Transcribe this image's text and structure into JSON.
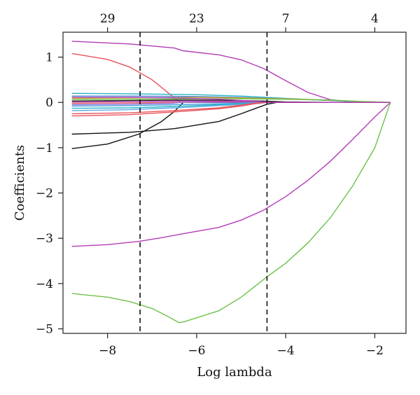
{
  "chart_data": {
    "type": "line",
    "xlabel": "Log lambda",
    "ylabel": "Coefficients",
    "xlim": [
      -9.0,
      -1.3
    ],
    "ylim": [
      -5.1,
      1.55
    ],
    "xticks": [
      -8,
      -6,
      -4,
      -2
    ],
    "yticks": [
      -5,
      -4,
      -3,
      -2,
      -1,
      0,
      1
    ],
    "xtick_labels": [
      "−8",
      "−6",
      "−4",
      "−2"
    ],
    "ytick_labels": [
      "−5",
      "−4",
      "−3",
      "−2",
      "−1",
      "0",
      "1"
    ],
    "top_axis": {
      "positions": [
        -8.0,
        -6.0,
        -4.0,
        -2.0
      ],
      "labels": [
        "29",
        "23",
        "7",
        "4"
      ]
    },
    "vlines": [
      -7.27,
      -4.42
    ],
    "grid": false,
    "series": [
      {
        "color": "#b33cb8",
        "x": [
          -8.8,
          -7.5,
          -6.5,
          -6.3,
          -5.5,
          -5.0,
          -4.5,
          -4.0,
          -3.5,
          -3.0,
          -2.5,
          -2.2,
          -1.65
        ],
        "y": [
          1.35,
          1.29,
          1.2,
          1.14,
          1.05,
          0.94,
          0.75,
          0.48,
          0.22,
          0.06,
          0.01,
          0.0,
          0.0
        ]
      },
      {
        "color": "#e8535a",
        "x": [
          -8.8,
          -8.0,
          -7.5,
          -7.0,
          -6.7,
          -6.5,
          -6.35,
          -5.0,
          -3.0,
          -1.65
        ],
        "y": [
          1.08,
          0.95,
          0.78,
          0.5,
          0.26,
          0.1,
          0.0,
          0.0,
          0.0,
          0.0
        ]
      },
      {
        "color": "#b33cb8",
        "x": [
          -8.8,
          -8.0,
          -7.3,
          -6.8,
          -6.3,
          -5.5,
          -5.0,
          -4.5,
          -4.0,
          -3.5,
          -3.0,
          -2.5,
          -2.0,
          -1.65
        ],
        "y": [
          -3.18,
          -3.14,
          -3.07,
          -2.99,
          -2.9,
          -2.76,
          -2.6,
          -2.38,
          -2.08,
          -1.72,
          -1.3,
          -0.82,
          -0.32,
          0.0
        ]
      },
      {
        "color": "#6cc24a",
        "x": [
          -8.8,
          -8.0,
          -7.5,
          -7.0,
          -6.6,
          -6.4,
          -6.3,
          -5.5,
          -5.0,
          -4.42,
          -4.0,
          -3.5,
          -3.0,
          -2.5,
          -2.0,
          -1.65
        ],
        "y": [
          -4.22,
          -4.3,
          -4.4,
          -4.55,
          -4.75,
          -4.86,
          -4.85,
          -4.6,
          -4.3,
          -3.85,
          -3.55,
          -3.1,
          -2.55,
          -1.85,
          -1.0,
          0.0
        ]
      },
      {
        "color": "#111111",
        "x": [
          -8.8,
          -8.0,
          -7.3,
          -6.8,
          -6.5,
          -6.3,
          -5.0,
          -3.0,
          -1.65
        ],
        "y": [
          -1.02,
          -0.92,
          -0.7,
          -0.43,
          -0.2,
          0.0,
          0.0,
          0.0,
          0.0
        ]
      },
      {
        "color": "#111111",
        "x": [
          -8.8,
          -7.5,
          -6.5,
          -5.5,
          -5.0,
          -4.7,
          -4.42,
          -4.2,
          -3.0,
          -1.65
        ],
        "y": [
          -0.7,
          -0.66,
          -0.58,
          -0.42,
          -0.25,
          -0.14,
          -0.04,
          0.0,
          0.0,
          0.0
        ]
      },
      {
        "color": "#2bb3c6",
        "x": [
          -8.8,
          -7.5,
          -6.0,
          -5.0,
          -4.0,
          -3.0,
          -2.3,
          -1.65
        ],
        "y": [
          0.2,
          0.19,
          0.17,
          0.14,
          0.09,
          0.04,
          0.01,
          0.0
        ]
      },
      {
        "color": "#4d86d6",
        "x": [
          -8.8,
          -7.5,
          -6.0,
          -5.0,
          -4.0,
          -3.0,
          -2.3,
          -1.65
        ],
        "y": [
          0.14,
          0.14,
          0.13,
          0.11,
          0.08,
          0.04,
          0.01,
          0.0
        ]
      },
      {
        "color": "#c9a227",
        "x": [
          -8.8,
          -7.5,
          -6.0,
          -5.0,
          -4.0,
          -3.0,
          -2.3,
          -1.65
        ],
        "y": [
          0.09,
          0.1,
          0.11,
          0.1,
          0.08,
          0.05,
          0.02,
          0.0
        ]
      },
      {
        "color": "#6cc24a",
        "x": [
          -8.8,
          -7.5,
          -6.0,
          -5.0,
          -4.0,
          -3.0,
          -2.3,
          -1.65
        ],
        "y": [
          0.06,
          0.07,
          0.08,
          0.08,
          0.07,
          0.05,
          0.02,
          0.0
        ]
      },
      {
        "color": "#222222",
        "x": [
          -8.8,
          -7.5,
          -6.5,
          -5.5,
          -4.5,
          -4.0,
          -3.0,
          -1.65
        ],
        "y": [
          0.03,
          0.04,
          0.05,
          0.05,
          0.03,
          0.01,
          0.0,
          0.0
        ]
      },
      {
        "color": "#b33cb8",
        "x": [
          -8.8,
          -7.5,
          -6.5,
          -5.5,
          -4.6,
          -4.42,
          -3.0,
          -1.65
        ],
        "y": [
          0.01,
          0.02,
          0.03,
          0.03,
          0.01,
          0.0,
          0.0,
          0.0
        ]
      },
      {
        "color": "#e8535a",
        "x": [
          -8.8,
          -7.5,
          -6.5,
          -5.5,
          -4.6,
          -4.42,
          -3.0,
          -1.65
        ],
        "y": [
          -0.02,
          -0.01,
          0.0,
          0.01,
          0.0,
          0.0,
          0.0,
          0.0
        ]
      },
      {
        "color": "#8e6bd6",
        "x": [
          -8.8,
          -7.5,
          -6.6,
          -6.3,
          -5.0,
          -3.0,
          -1.65
        ],
        "y": [
          -0.05,
          -0.04,
          -0.02,
          0.0,
          0.0,
          0.0,
          0.0
        ]
      },
      {
        "color": "#3fa0dc",
        "x": [
          -8.8,
          -7.5,
          -6.5,
          -5.5,
          -4.6,
          -4.42,
          -3.0,
          -1.65
        ],
        "y": [
          -0.08,
          -0.07,
          -0.05,
          -0.03,
          -0.01,
          0.0,
          0.0,
          0.0
        ]
      },
      {
        "color": "#2bb3c6",
        "x": [
          -8.8,
          -7.5,
          -6.5,
          -5.5,
          -4.6,
          -4.42,
          -3.0,
          -1.65
        ],
        "y": [
          -0.13,
          -0.12,
          -0.09,
          -0.05,
          -0.01,
          0.0,
          0.0,
          0.0
        ]
      },
      {
        "color": "#5aa9e6",
        "x": [
          -8.8,
          -7.5,
          -6.5,
          -5.5,
          -4.6,
          -4.42,
          -3.0,
          -1.65
        ],
        "y": [
          -0.18,
          -0.16,
          -0.12,
          -0.07,
          -0.02,
          0.0,
          0.0,
          0.0
        ]
      },
      {
        "color": "#e8535a",
        "x": [
          -8.8,
          -7.5,
          -6.5,
          -5.5,
          -5.0,
          -4.7,
          -4.42,
          -3.0,
          -1.65
        ],
        "y": [
          -0.25,
          -0.23,
          -0.18,
          -0.12,
          -0.06,
          -0.02,
          0.0,
          0.0,
          0.0
        ]
      },
      {
        "color": "#e8535a",
        "x": [
          -8.8,
          -7.5,
          -6.5,
          -5.5,
          -5.0,
          -4.7,
          -4.42,
          -3.0,
          -1.65
        ],
        "y": [
          -0.3,
          -0.27,
          -0.21,
          -0.14,
          -0.08,
          -0.03,
          0.0,
          0.0,
          0.0
        ]
      },
      {
        "color": "#b33cb8",
        "x": [
          -8.8,
          -7.5,
          -6.5,
          -5.5,
          -4.6,
          -4.42,
          -3.0,
          -1.65
        ],
        "y": [
          0.11,
          0.11,
          0.1,
          0.07,
          0.02,
          0.0,
          0.0,
          0.0
        ]
      }
    ]
  }
}
